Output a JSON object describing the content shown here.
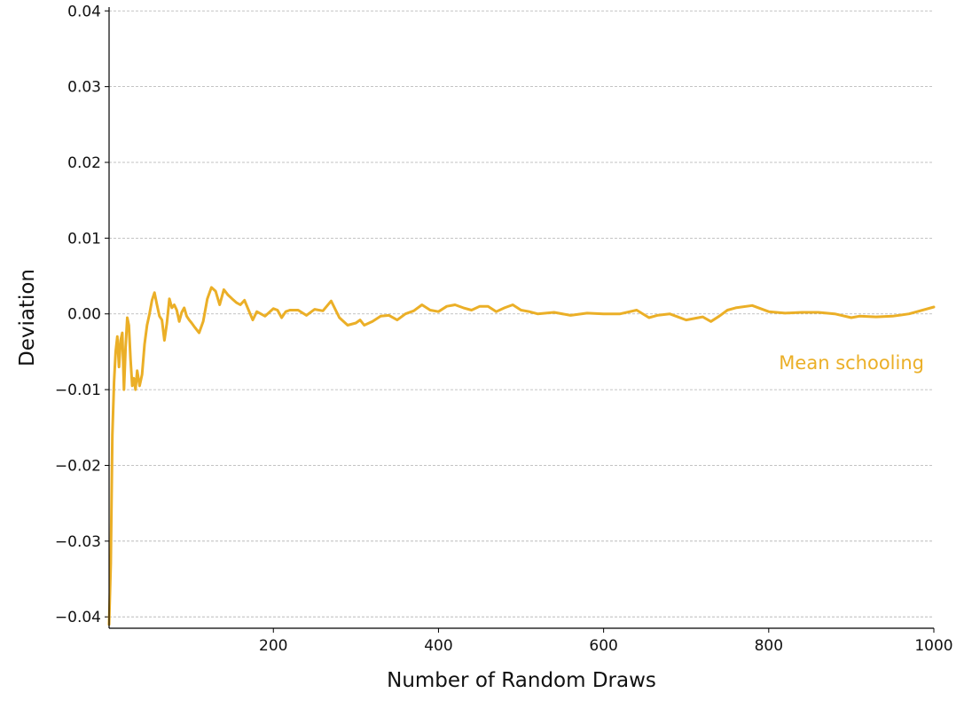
{
  "chart_data": {
    "type": "line",
    "xlabel": "Number of Random Draws",
    "ylabel": "Deviation",
    "xlim": [
      1,
      1000
    ],
    "ylim": [
      -0.0415,
      0.0405
    ],
    "grid": "horizontal-dashed",
    "x_ticks": [
      200,
      400,
      600,
      800,
      1000
    ],
    "x_tick_labels": [
      "200",
      "400",
      "600",
      "800",
      "1000"
    ],
    "y_ticks": [
      0.04,
      0.03,
      0.02,
      0.01,
      0.0,
      -0.01,
      -0.02,
      -0.03,
      -0.04
    ],
    "y_tick_labels": [
      "0.04",
      "0.03",
      "0.02",
      "0.01",
      "0.00",
      "−0.01",
      "−0.02",
      "−0.03",
      "−0.04"
    ],
    "series": [
      {
        "name": "Mean schooling",
        "color": "#ebaf27",
        "label_placement": "right, below the line",
        "x": [
          1,
          3,
          5,
          7,
          9,
          11,
          13,
          15,
          17,
          19,
          21,
          23,
          25,
          27,
          29,
          31,
          33,
          35,
          38,
          41,
          44,
          47,
          50,
          53,
          56,
          59,
          62,
          65,
          68,
          71,
          74,
          77,
          80,
          83,
          86,
          89,
          92,
          95,
          98,
          101,
          105,
          110,
          115,
          120,
          125,
          130,
          135,
          140,
          145,
          150,
          155,
          160,
          165,
          170,
          175,
          180,
          190,
          200,
          205,
          210,
          215,
          220,
          230,
          240,
          250,
          260,
          270,
          280,
          290,
          300,
          305,
          310,
          320,
          330,
          340,
          350,
          360,
          370,
          380,
          390,
          400,
          410,
          420,
          430,
          440,
          450,
          460,
          470,
          480,
          490,
          500,
          510,
          520,
          540,
          560,
          580,
          600,
          620,
          640,
          655,
          665,
          680,
          700,
          720,
          730,
          740,
          750,
          760,
          780,
          800,
          820,
          840,
          860,
          880,
          900,
          910,
          930,
          950,
          970,
          1000
        ],
        "y": [
          -0.041,
          -0.033,
          -0.016,
          -0.009,
          -0.005,
          -0.003,
          -0.007,
          -0.0035,
          -0.0025,
          -0.01,
          -0.0045,
          -0.0005,
          -0.0015,
          -0.006,
          -0.0095,
          -0.0085,
          -0.01,
          -0.0075,
          -0.0095,
          -0.008,
          -0.004,
          -0.0015,
          0.0,
          0.0018,
          0.0028,
          0.0012,
          -0.0003,
          -0.0008,
          -0.0035,
          -0.0012,
          0.002,
          0.0008,
          0.0012,
          0.0005,
          -0.001,
          0.0002,
          0.0008,
          -0.0003,
          -0.0008,
          -0.0012,
          -0.0018,
          -0.0025,
          -0.001,
          0.002,
          0.0035,
          0.003,
          0.0012,
          0.0032,
          0.0025,
          0.002,
          0.0015,
          0.0012,
          0.0018,
          0.0005,
          -0.0008,
          0.0003,
          -0.0003,
          0.0007,
          0.0005,
          -0.0005,
          0.0003,
          0.0005,
          0.0005,
          -0.0002,
          0.0006,
          0.0004,
          0.0017,
          -0.0005,
          -0.0015,
          -0.0012,
          -0.0008,
          -0.0015,
          -0.001,
          -0.0003,
          -0.0002,
          -0.0008,
          0.0,
          0.0004,
          0.0012,
          0.0005,
          0.0003,
          0.001,
          0.0012,
          0.0008,
          0.0005,
          0.001,
          0.001,
          0.0003,
          0.0008,
          0.0012,
          0.0005,
          0.0003,
          0.0,
          0.0002,
          -0.0002,
          0.0001,
          0.0,
          0.0,
          0.0005,
          -0.0005,
          -0.0002,
          0.0,
          -0.0008,
          -0.0004,
          -0.001,
          -0.0003,
          0.0005,
          0.0008,
          0.0011,
          0.0003,
          0.0001,
          0.0002,
          0.0002,
          0.0,
          -0.0005,
          -0.0003,
          -0.0004,
          -0.0003,
          0.0,
          0.0009
        ]
      }
    ]
  }
}
